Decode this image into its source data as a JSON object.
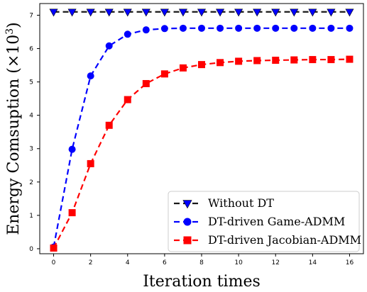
{
  "chart_data": {
    "type": "line",
    "xlabel": "Iteration times",
    "ylabel_main": "Energy Comsuption (×10",
    "ylabel_exp": "3",
    "ylabel_close": ")",
    "xlim": [
      -0.75,
      16.75
    ],
    "ylim": [
      -0.15,
      7.35
    ],
    "xticks": [
      0,
      2,
      4,
      6,
      8,
      10,
      12,
      14,
      16
    ],
    "xtick_labels": [
      "0",
      "2",
      "4",
      "6",
      "8",
      "10",
      "12",
      "14",
      "16"
    ],
    "yticks": [
      0,
      1,
      2,
      3,
      4,
      5,
      6,
      7
    ],
    "ytick_labels": [
      "0",
      "1",
      "2",
      "3",
      "4",
      "5",
      "6",
      "7"
    ],
    "grid": false,
    "legend_position": "lower-right",
    "x": [
      0,
      1,
      2,
      3,
      4,
      5,
      6,
      7,
      8,
      9,
      10,
      11,
      12,
      13,
      14,
      15,
      16
    ],
    "series": [
      {
        "name": "Without DT",
        "color": "#1a1a1a",
        "marker": "triangle-down",
        "marker_color": "#0000ff",
        "values": [
          7.1,
          7.1,
          7.1,
          7.1,
          7.1,
          7.1,
          7.1,
          7.1,
          7.1,
          7.1,
          7.1,
          7.1,
          7.1,
          7.1,
          7.1,
          7.1,
          7.1
        ]
      },
      {
        "name": "DT-driven Game-ADMM",
        "color": "#0000ff",
        "marker": "circle",
        "marker_color": "#0000ff",
        "values": [
          0.05,
          2.98,
          5.18,
          6.08,
          6.43,
          6.56,
          6.6,
          6.61,
          6.61,
          6.61,
          6.61,
          6.61,
          6.61,
          6.61,
          6.61,
          6.61,
          6.61
        ]
      },
      {
        "name": "DT-driven Jacobian-ADMM",
        "color": "#ff0000",
        "marker": "square",
        "marker_color": "#ff0000",
        "values": [
          0.02,
          1.08,
          2.55,
          3.7,
          4.47,
          4.95,
          5.24,
          5.42,
          5.52,
          5.58,
          5.62,
          5.64,
          5.65,
          5.66,
          5.67,
          5.67,
          5.68
        ]
      }
    ]
  }
}
